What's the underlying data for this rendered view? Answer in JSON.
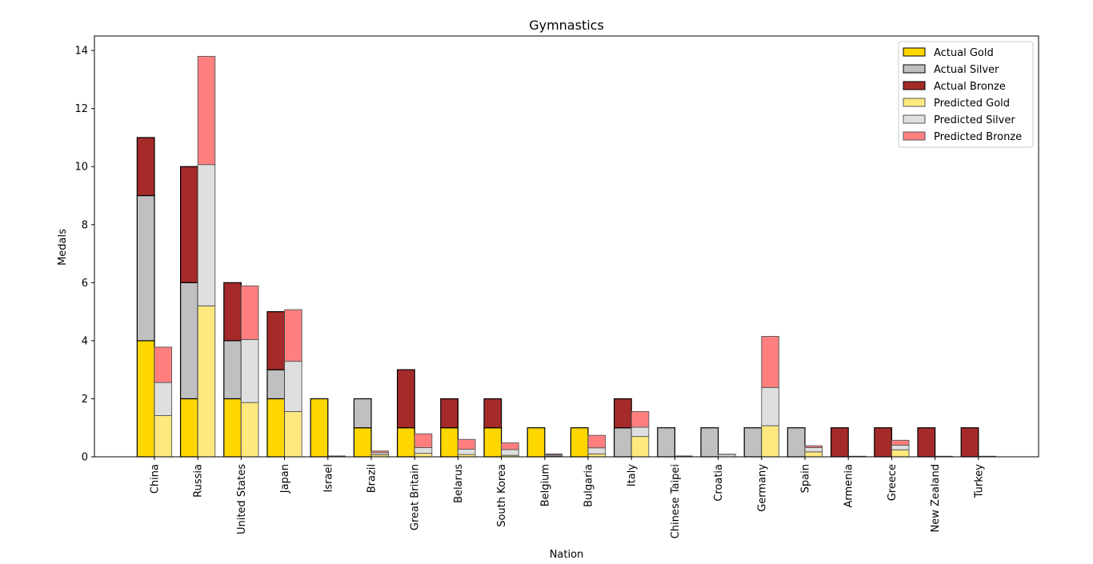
{
  "chart_data": {
    "type": "bar",
    "title": "Gymnastics",
    "xlabel": "Nation",
    "ylabel": "Medals",
    "ylim": [
      0,
      14.5
    ],
    "yticks": [
      0,
      2,
      4,
      6,
      8,
      10,
      12,
      14
    ],
    "grid": false,
    "legend_position": "top-right",
    "categories": [
      "China",
      "Russia",
      "United States",
      "Japan",
      "Israel",
      "Brazil",
      "Great Britain",
      "Belarus",
      "South Korea",
      "Belgium",
      "Bulgaria",
      "Italy",
      "Chinese Taipei",
      "Croatia",
      "Germany",
      "Spain",
      "Armenia",
      "Greece",
      "New Zealand",
      "Turkey"
    ],
    "series": [
      {
        "name": "Actual Gold",
        "group": "actual",
        "color": "#FFD700",
        "values": [
          4,
          2,
          2,
          2,
          2,
          1,
          1,
          1,
          1,
          1,
          1,
          0,
          0,
          0,
          0,
          0,
          0,
          0,
          0,
          0
        ]
      },
      {
        "name": "Actual Silver",
        "group": "actual",
        "color": "#C0C0C0",
        "values": [
          5,
          4,
          2,
          1,
          0,
          1,
          0,
          0,
          0,
          0,
          0,
          1,
          1,
          1,
          1,
          1,
          0,
          0,
          0,
          0
        ]
      },
      {
        "name": "Actual Bronze",
        "group": "actual",
        "color": "#A52A2A",
        "values": [
          2,
          4,
          2,
          2,
          0,
          0,
          2,
          1,
          1,
          0,
          0,
          1,
          0,
          0,
          0,
          0,
          1,
          1,
          1,
          1
        ]
      },
      {
        "name": "Predicted Gold",
        "group": "predicted",
        "color": "#FFE97F",
        "values": [
          1.42,
          5.2,
          1.87,
          1.56,
          0.0,
          0.07,
          0.12,
          0.08,
          0.05,
          0.03,
          0.1,
          0.7,
          0.0,
          0.0,
          1.07,
          0.17,
          0.0,
          0.24,
          0.0,
          0.0
        ]
      },
      {
        "name": "Predicted Silver",
        "group": "predicted",
        "color": "#DFDFDF",
        "values": [
          1.14,
          4.87,
          2.17,
          1.73,
          0.02,
          0.07,
          0.2,
          0.18,
          0.2,
          0.04,
          0.21,
          0.32,
          0.02,
          0.08,
          1.32,
          0.15,
          0.01,
          0.16,
          0.01,
          0.01
        ]
      },
      {
        "name": "Predicted Bronze",
        "group": "predicted",
        "color": "#FF7F7F",
        "values": [
          1.22,
          3.73,
          1.85,
          1.78,
          0.01,
          0.06,
          0.47,
          0.34,
          0.23,
          0.03,
          0.43,
          0.54,
          0.01,
          0.01,
          1.76,
          0.06,
          0.01,
          0.17,
          0.01,
          0.01
        ]
      }
    ]
  }
}
